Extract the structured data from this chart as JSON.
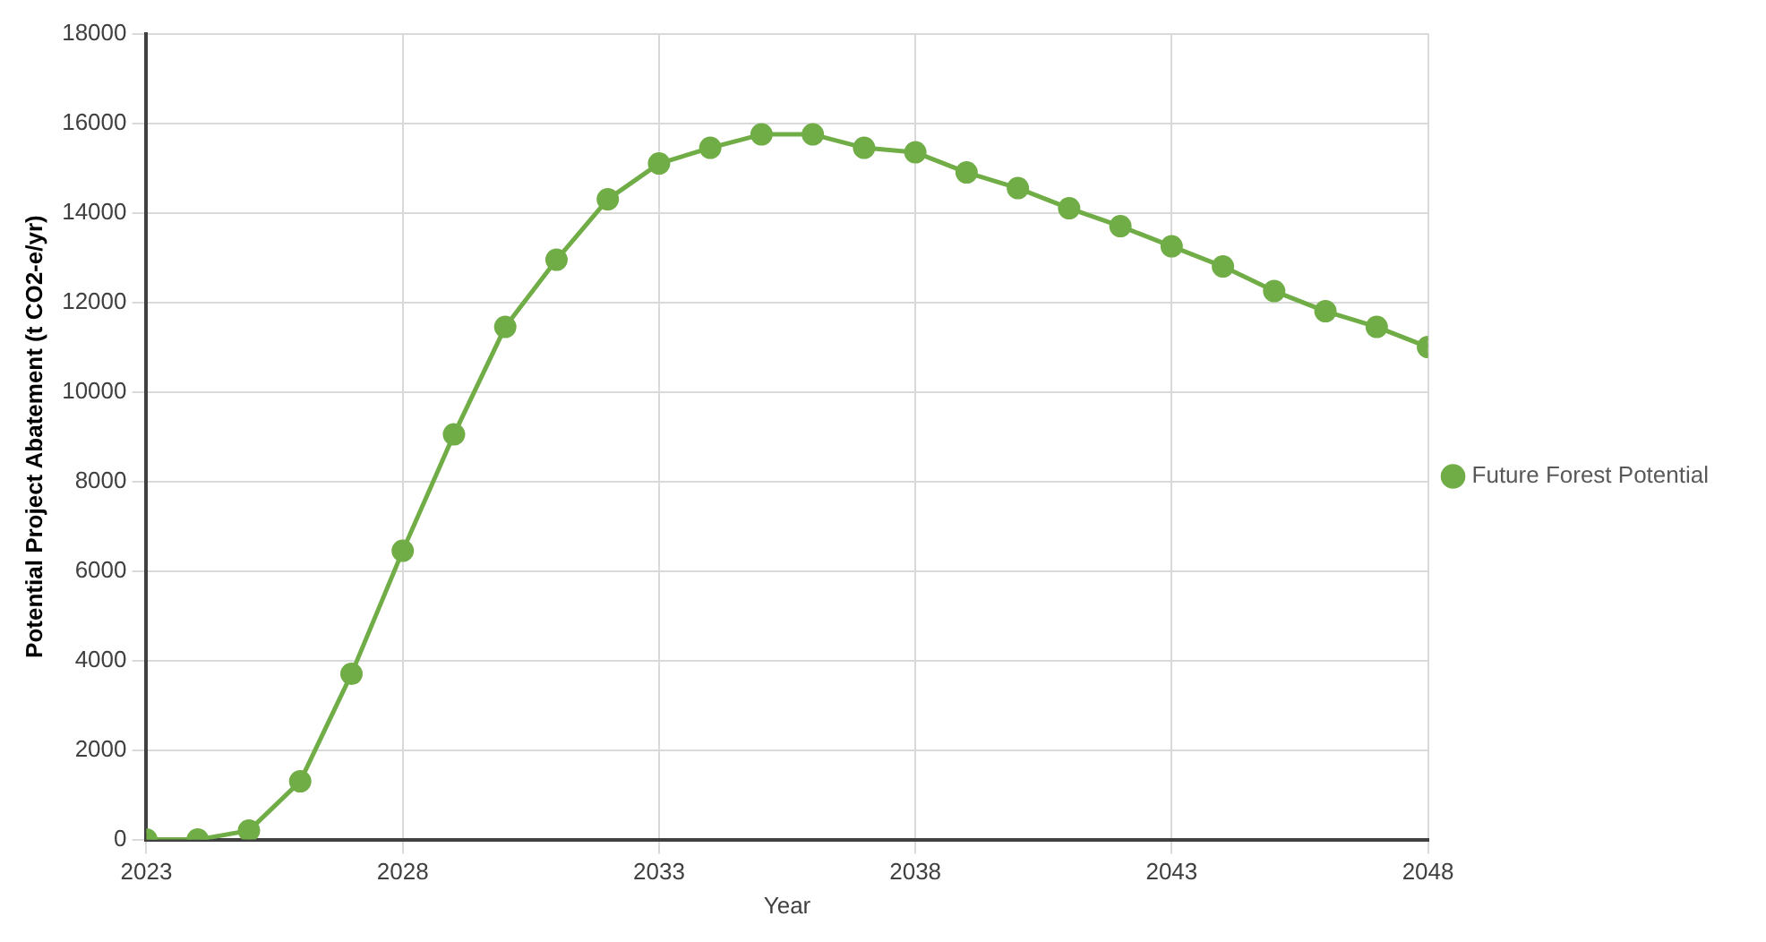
{
  "chart_data": {
    "type": "line",
    "xlabel": "Year",
    "ylabel": "Potential Project Abatement (t CO2-e/yr)",
    "x": [
      2023,
      2024,
      2025,
      2026,
      2027,
      2028,
      2029,
      2030,
      2031,
      2032,
      2033,
      2034,
      2035,
      2036,
      2037,
      2038,
      2039,
      2040,
      2041,
      2042,
      2043,
      2044,
      2045,
      2046,
      2047,
      2048
    ],
    "series": [
      {
        "name": "Future Forest Potential",
        "color": "#70ad47",
        "values": [
          0,
          0,
          200,
          1300,
          3700,
          6450,
          9050,
          11450,
          12950,
          14300,
          15100,
          15450,
          15750,
          15750,
          15450,
          15350,
          14900,
          14550,
          14100,
          13700,
          13250,
          12800,
          12250,
          11800,
          11450,
          11000
        ]
      }
    ],
    "xlim": [
      2023,
      2048
    ],
    "xticks": [
      2023,
      2028,
      2033,
      2038,
      2043,
      2048
    ],
    "ylim": [
      0,
      18000
    ],
    "yticks": [
      0,
      2000,
      4000,
      6000,
      8000,
      10000,
      12000,
      14000,
      16000,
      18000
    ],
    "grid": true,
    "legend": "right",
    "marker": "circle",
    "line_style": "solid"
  }
}
